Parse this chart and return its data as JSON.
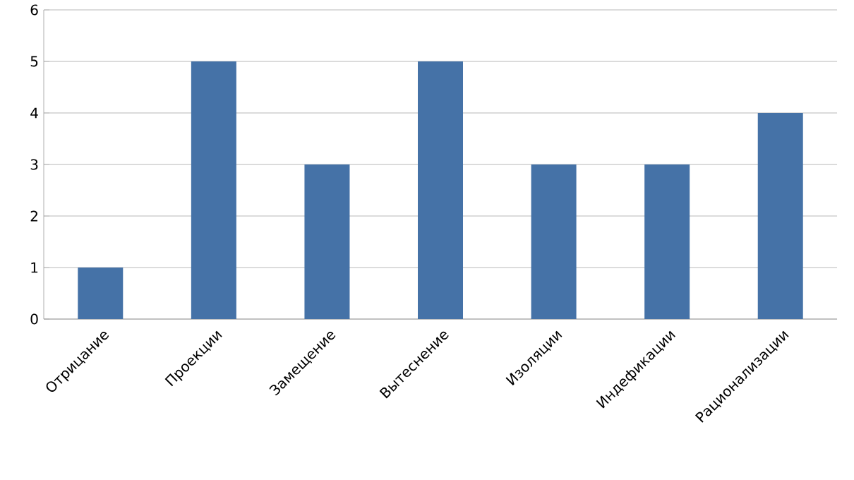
{
  "chart_data": {
    "type": "bar",
    "categories": [
      "Отрицание",
      "Проекции",
      "Замещение",
      "Вытеснение",
      "Изоляции",
      "Индефикации",
      "Рационализации"
    ],
    "values": [
      1,
      5,
      3,
      5,
      3,
      3,
      4
    ],
    "color": "#4572a7",
    "ylim": [
      0,
      6
    ],
    "yticks": [
      0,
      1,
      2,
      3,
      4,
      5,
      6
    ],
    "grid": "y"
  }
}
